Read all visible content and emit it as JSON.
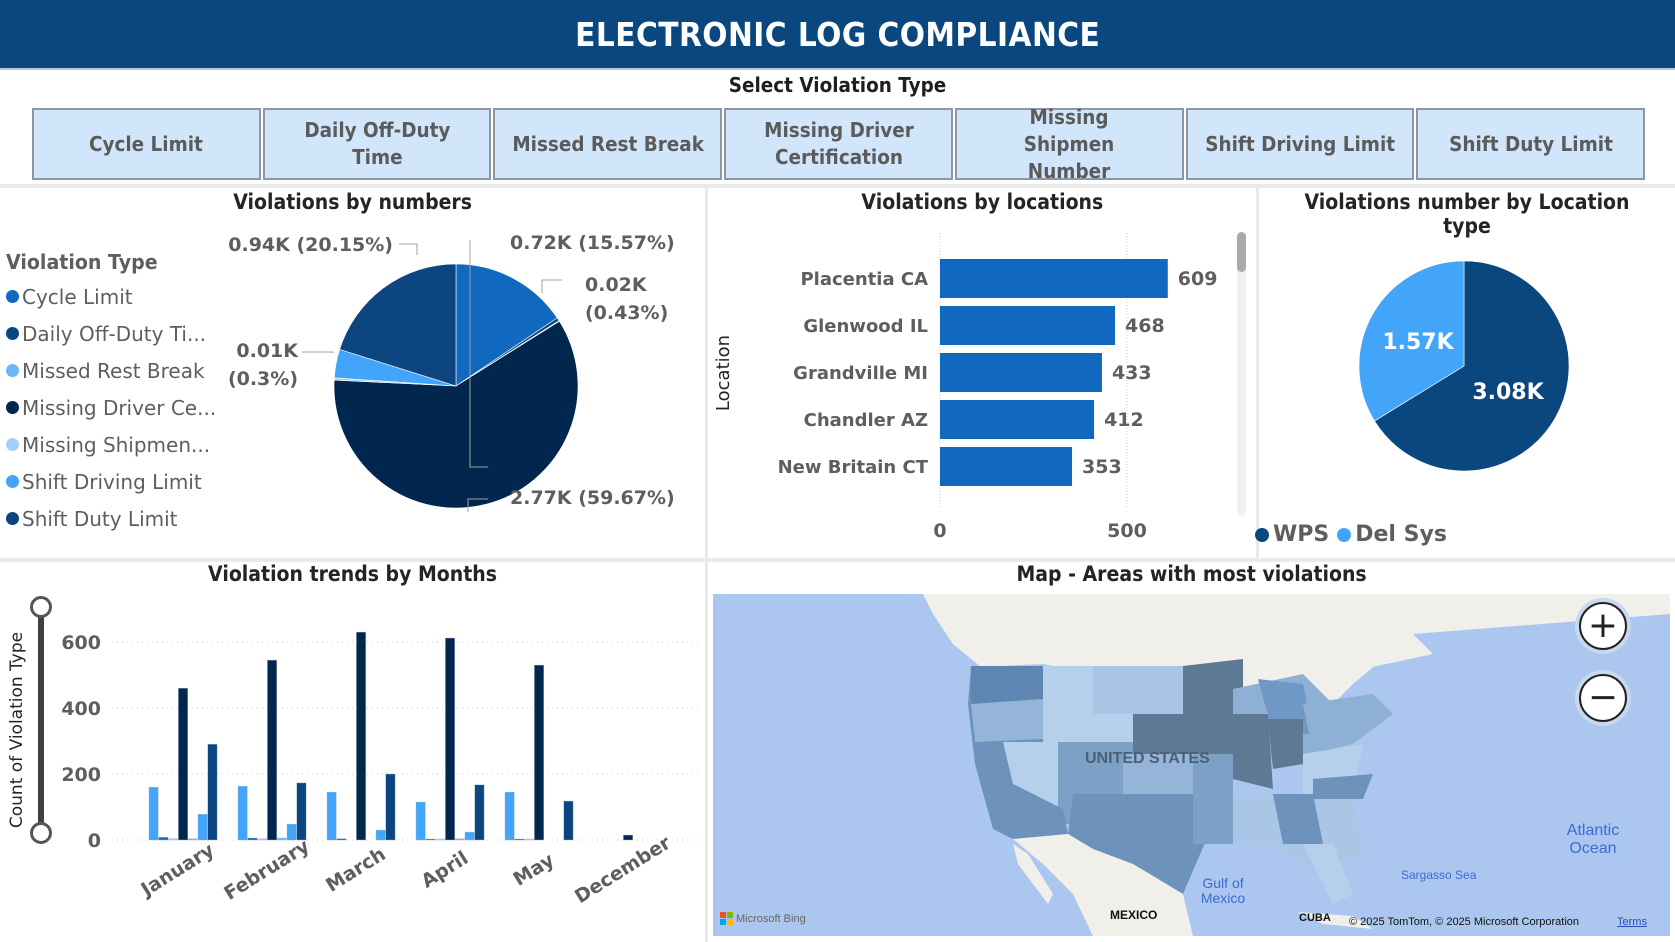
{
  "header": {
    "title": "ELECTRONIC LOG COMPLIANCE"
  },
  "slicer": {
    "title": "Select Violation Type",
    "options": [
      "Cycle Limit",
      "Daily Off-Duty Time",
      "Missed Rest Break",
      "Missing Driver Certification",
      "Missing Shipmen Number",
      "Shift Driving Limit",
      "Shift Duty Limit"
    ]
  },
  "colors": {
    "header_bg": "#0b477f",
    "slicer_bg": "#d2e6fb",
    "cycle_limit": "#1068bf",
    "daily_off_duty": "#0b477f",
    "missed_rest_break": "#6eb6f7",
    "missing_driver_cert": "#01274f",
    "missing_shipment": "#a4d1fb",
    "shift_driving_limit": "#42a5fa",
    "shift_duty_limit": "#0c4580",
    "bar": "#1068bf",
    "wps": "#0b477f",
    "del_sys": "#42a5fa"
  },
  "violations_by_numbers": {
    "title": "Violations by numbers",
    "legend_title": "Violation Type",
    "legend": [
      {
        "label": "Cycle Limit",
        "color_key": "cycle_limit"
      },
      {
        "label": "Daily Off-Duty Ti...",
        "color_key": "daily_off_duty"
      },
      {
        "label": "Missed Rest Break",
        "color_key": "missed_rest_break"
      },
      {
        "label": "Missing Driver Ce...",
        "color_key": "missing_driver_cert"
      },
      {
        "label": "Missing Shipmen...",
        "color_key": "missing_shipment"
      },
      {
        "label": "Shift Driving Limit",
        "color_key": "shift_driving_limit"
      },
      {
        "label": "Shift Duty Limit",
        "color_key": "shift_duty_limit"
      }
    ]
  },
  "violations_by_locations": {
    "title": "Violations by locations",
    "ylabel": "Location"
  },
  "location_type": {
    "title": "Violations number by Location type",
    "legend": [
      {
        "label": "WPS",
        "color_key": "wps"
      },
      {
        "label": "Del Sys",
        "color_key": "del_sys"
      }
    ]
  },
  "trends": {
    "title": "Violation trends by Months",
    "ylabel": "Count of Violation Type"
  },
  "map": {
    "title": "Map - Areas with most violations",
    "labels": {
      "country": "UNITED STATES",
      "mexico": "MEXICO",
      "cuba": "CUBA",
      "gulf": "Gulf of Mexico",
      "atlantic": "Atlantic Ocean",
      "sargasso": "Sargasso Sea",
      "bing": "Microsoft Bing",
      "copyright": "© 2025 TomTom, © 2025 Microsoft Corporation",
      "terms": "Terms"
    },
    "zoom_in": "+",
    "zoom_out": "−"
  },
  "chart_data": [
    {
      "type": "pie",
      "title": "Violations by numbers",
      "legend_title": "Violation Type",
      "slices": [
        {
          "name": "Cycle Limit",
          "value": 0.72,
          "unit": "K",
          "label": "0.72K (15.57%)",
          "percent": 15.57,
          "color_key": "cycle_limit"
        },
        {
          "name": "Daily Off-Duty Time",
          "value": 0.02,
          "unit": "K",
          "label": "0.02K (0.43%)",
          "percent": 0.43,
          "color_key": "daily_off_duty"
        },
        {
          "name": "Missed Rest Break",
          "value": 0.0,
          "unit": "K",
          "label": "",
          "percent": 0.1,
          "color_key": "missed_rest_break"
        },
        {
          "name": "Missing Driver Certification",
          "value": 2.77,
          "unit": "K",
          "label": "2.77K (59.67%)",
          "percent": 59.67,
          "color_key": "missing_driver_cert"
        },
        {
          "name": "Missing Shipment Number",
          "value": 0.01,
          "unit": "K",
          "label": "0.01K (0.3%)",
          "percent": 0.3,
          "color_key": "missing_shipment"
        },
        {
          "name": "Shift Driving Limit",
          "value": 0.17,
          "unit": "K",
          "label": "",
          "percent": 3.78,
          "color_key": "shift_driving_limit"
        },
        {
          "name": "Shift Duty Limit",
          "value": 0.94,
          "unit": "K",
          "label": "0.94K (20.15%)",
          "percent": 20.15,
          "color_key": "shift_duty_limit"
        }
      ]
    },
    {
      "type": "bar",
      "orientation": "horizontal",
      "title": "Violations by locations",
      "ylabel": "Location",
      "xlabel": "",
      "categories": [
        "Placentia CA",
        "Glenwood IL",
        "Grandville MI",
        "Chandler AZ",
        "New Britain CT"
      ],
      "values": [
        609,
        468,
        433,
        412,
        353
      ],
      "xticks": [
        0,
        500
      ],
      "xlim": [
        0,
        620
      ],
      "grid": true
    },
    {
      "type": "pie",
      "title": "Violations number by Location type",
      "slices": [
        {
          "name": "WPS",
          "value": 3.08,
          "unit": "K",
          "label": "3.08K",
          "color_key": "wps"
        },
        {
          "name": "Del Sys",
          "value": 1.57,
          "unit": "K",
          "label": "1.57K",
          "color_key": "del_sys"
        }
      ],
      "legend_position": "bottom"
    },
    {
      "type": "bar",
      "title": "Violation trends by Months",
      "ylabel": "Count of Violation Type",
      "xlabel": "",
      "categories": [
        "January",
        "February",
        "March",
        "April",
        "May",
        "December"
      ],
      "ylim": [
        0,
        650
      ],
      "yticks": [
        0,
        200,
        400,
        600
      ],
      "grid": true,
      "series": [
        {
          "name": "Shift Driving Limit",
          "color_key": "shift_driving_limit",
          "values": [
            160,
            163,
            145,
            115,
            145,
            0
          ]
        },
        {
          "name": "Cycle Limit",
          "color_key": "cycle_limit",
          "values": [
            8,
            6,
            4,
            3,
            3,
            0
          ]
        },
        {
          "name": "Missing Shipment Number",
          "color_key": "missing_shipment",
          "values": [
            4,
            4,
            0,
            3,
            3,
            0
          ]
        },
        {
          "name": "Missing Driver Certification",
          "color_key": "missing_driver_cert",
          "values": [
            460,
            545,
            630,
            612,
            530,
            15
          ]
        },
        {
          "name": "Missed Rest Break",
          "color_key": "missed_rest_break",
          "values": [
            4,
            6,
            0,
            4,
            0,
            0
          ]
        },
        {
          "name": "Shift Driving Limit (2)",
          "color_key": "shift_driving_limit",
          "values": [
            78,
            48,
            30,
            24,
            0,
            0
          ]
        },
        {
          "name": "Shift Duty Limit",
          "color_key": "shift_duty_limit",
          "values": [
            290,
            173,
            200,
            167,
            118,
            0
          ]
        }
      ]
    }
  ]
}
